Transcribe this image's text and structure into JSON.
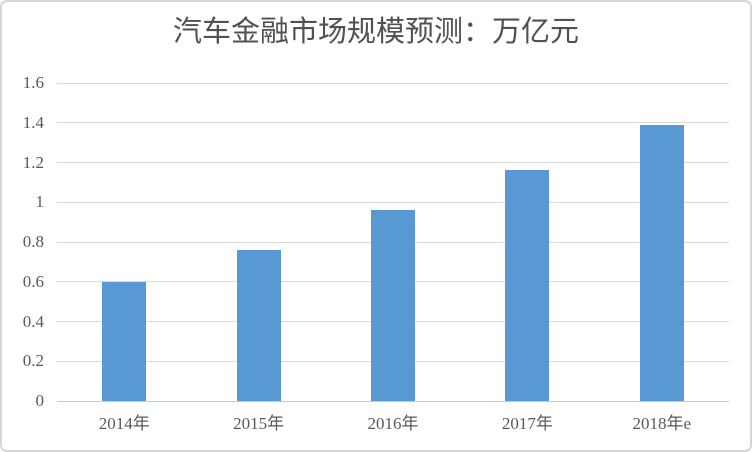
{
  "chart_data": {
    "type": "bar",
    "title": "汽车金融市场规模预测：万亿元",
    "categories": [
      "2014年",
      "2015年",
      "2016年",
      "2017年",
      "2018年e"
    ],
    "values": [
      0.6,
      0.76,
      0.96,
      1.16,
      1.39
    ],
    "series_name": "",
    "xlabel": "",
    "ylabel": "",
    "unit": "万亿元",
    "ylim": [
      0,
      1.6
    ],
    "yticks": [
      {
        "value": 0,
        "label": "0"
      },
      {
        "value": 0.2,
        "label": "0.2"
      },
      {
        "value": 0.4,
        "label": "0.4"
      },
      {
        "value": 0.6,
        "label": "0.6"
      },
      {
        "value": 0.8,
        "label": "0.8"
      },
      {
        "value": 1,
        "label": "1"
      },
      {
        "value": 1.2,
        "label": "1.2"
      },
      {
        "value": 1.4,
        "label": "1.4"
      },
      {
        "value": 1.6,
        "label": "1.6"
      }
    ],
    "grid": "horizontal",
    "legend": "none",
    "colors": {
      "bar": "#5898D3",
      "gridline": "#D9D9D9",
      "axis_line": "#C8C8C8",
      "tick_text": "#595959",
      "title_text": "#515151",
      "frame_border": "#D6D6D6",
      "background": "#FFFFFF"
    }
  }
}
